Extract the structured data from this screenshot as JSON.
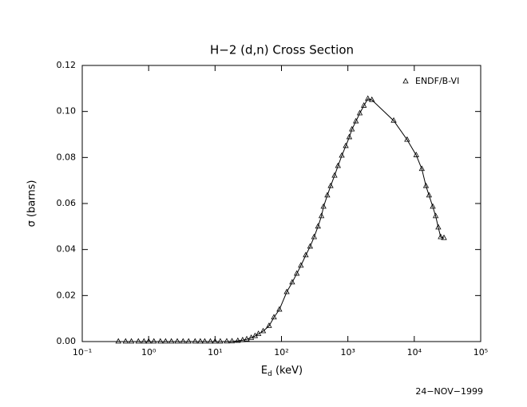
{
  "chart_data": {
    "type": "line",
    "title": "H−2 (d,n) Cross Section",
    "x_label": [
      "E",
      "d",
      " (keV)"
    ],
    "y_label": "σ (barns)",
    "date": "24−NOV−1999",
    "log_x": true,
    "legend": "upper right",
    "xlim": [
      0.1,
      100000
    ],
    "xticks": [
      {
        "value": 0.1,
        "label": "10⁻¹"
      },
      {
        "value": 1,
        "label": "10⁰"
      },
      {
        "value": 10,
        "label": "10¹"
      },
      {
        "value": 100,
        "label": "10²"
      },
      {
        "value": 1000,
        "label": "10³"
      },
      {
        "value": 10000,
        "label": "10⁴"
      },
      {
        "value": 100000,
        "label": "10⁵"
      }
    ],
    "ylim": [
      0,
      0.12
    ],
    "yticks": [
      {
        "value": 0,
        "label": "0.00"
      },
      0.02,
      0.04,
      0.06,
      0.08,
      {
        "value": 0.1,
        "label": "0.10"
      },
      0.12
    ],
    "x": [
      0.35,
      0.45,
      0.55,
      0.7,
      0.85,
      1,
      1.2,
      1.5,
      1.8,
      2.2,
      2.7,
      3.3,
      4,
      5,
      6,
      7,
      8.5,
      10,
      12,
      15,
      18,
      22,
      26,
      30,
      35,
      40,
      45,
      53,
      65,
      77,
      93,
      120,
      145,
      170,
      196,
      232,
      270,
      310,
      355,
      400,
      430,
      490,
      550,
      630,
      710,
      810,
      930,
      1050,
      1150,
      1320,
      1510,
      1740,
      2000,
      2300,
      4900,
      7800,
      10700,
      13000,
      15000,
      16700,
      19000,
      21000,
      23000,
      25000,
      28000
    ],
    "series": [
      {
        "name": "ENDF/B-VI",
        "color": "#000000",
        "values": [
          0,
          0,
          0,
          0,
          0,
          0,
          0,
          0,
          0,
          0,
          0,
          0,
          0,
          0,
          0,
          0,
          0,
          0,
          2e-05,
          5e-05,
          0.0001,
          0.0003,
          0.0006,
          0.001,
          0.0016,
          0.0024,
          0.0033,
          0.0045,
          0.0068,
          0.0105,
          0.0139,
          0.0215,
          0.0257,
          0.0295,
          0.033,
          0.0375,
          0.0413,
          0.0454,
          0.05,
          0.0545,
          0.0586,
          0.0635,
          0.0676,
          0.0721,
          0.0763,
          0.0808,
          0.085,
          0.0888,
          0.0922,
          0.0957,
          0.0992,
          0.1025,
          0.1055,
          0.105,
          0.096,
          0.0877,
          0.081,
          0.075,
          0.0676,
          0.0635,
          0.0586,
          0.0545,
          0.0496,
          0.0454,
          0.045
        ]
      }
    ]
  }
}
